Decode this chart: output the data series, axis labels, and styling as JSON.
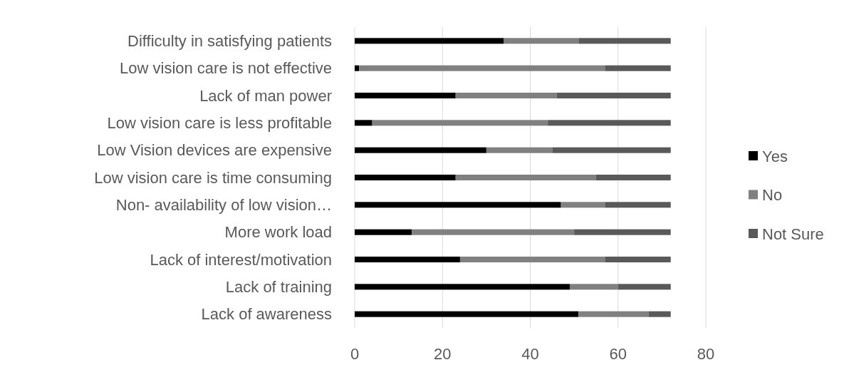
{
  "chart_data": {
    "type": "bar",
    "orientation": "horizontal",
    "stacked": true,
    "categories": [
      "Difficulty in satisfying patients",
      "Low vision care is not effective",
      "Lack of man power",
      "Low vision care is less profitable",
      "Low Vision devices are expensive",
      "Low vision care is time consuming",
      "Non- availability of low vision…",
      "More work load",
      "Lack of interest/motivation",
      "Lack of training",
      "Lack of awareness"
    ],
    "series": [
      {
        "name": "Yes",
        "color": "#000000",
        "values": [
          34,
          1,
          23,
          4,
          30,
          23,
          47,
          13,
          24,
          49,
          51
        ]
      },
      {
        "name": "No",
        "color": "#808080",
        "values": [
          17,
          56,
          23,
          40,
          15,
          32,
          10,
          37,
          33,
          11,
          16
        ]
      },
      {
        "name": "Not Sure",
        "color": "#595959",
        "values": [
          21,
          15,
          26,
          28,
          27,
          17,
          15,
          22,
          15,
          12,
          5
        ]
      }
    ],
    "xlim": [
      0,
      80
    ],
    "xticks": [
      0,
      20,
      40,
      60,
      80
    ],
    "grid": "x",
    "legend": "right"
  }
}
